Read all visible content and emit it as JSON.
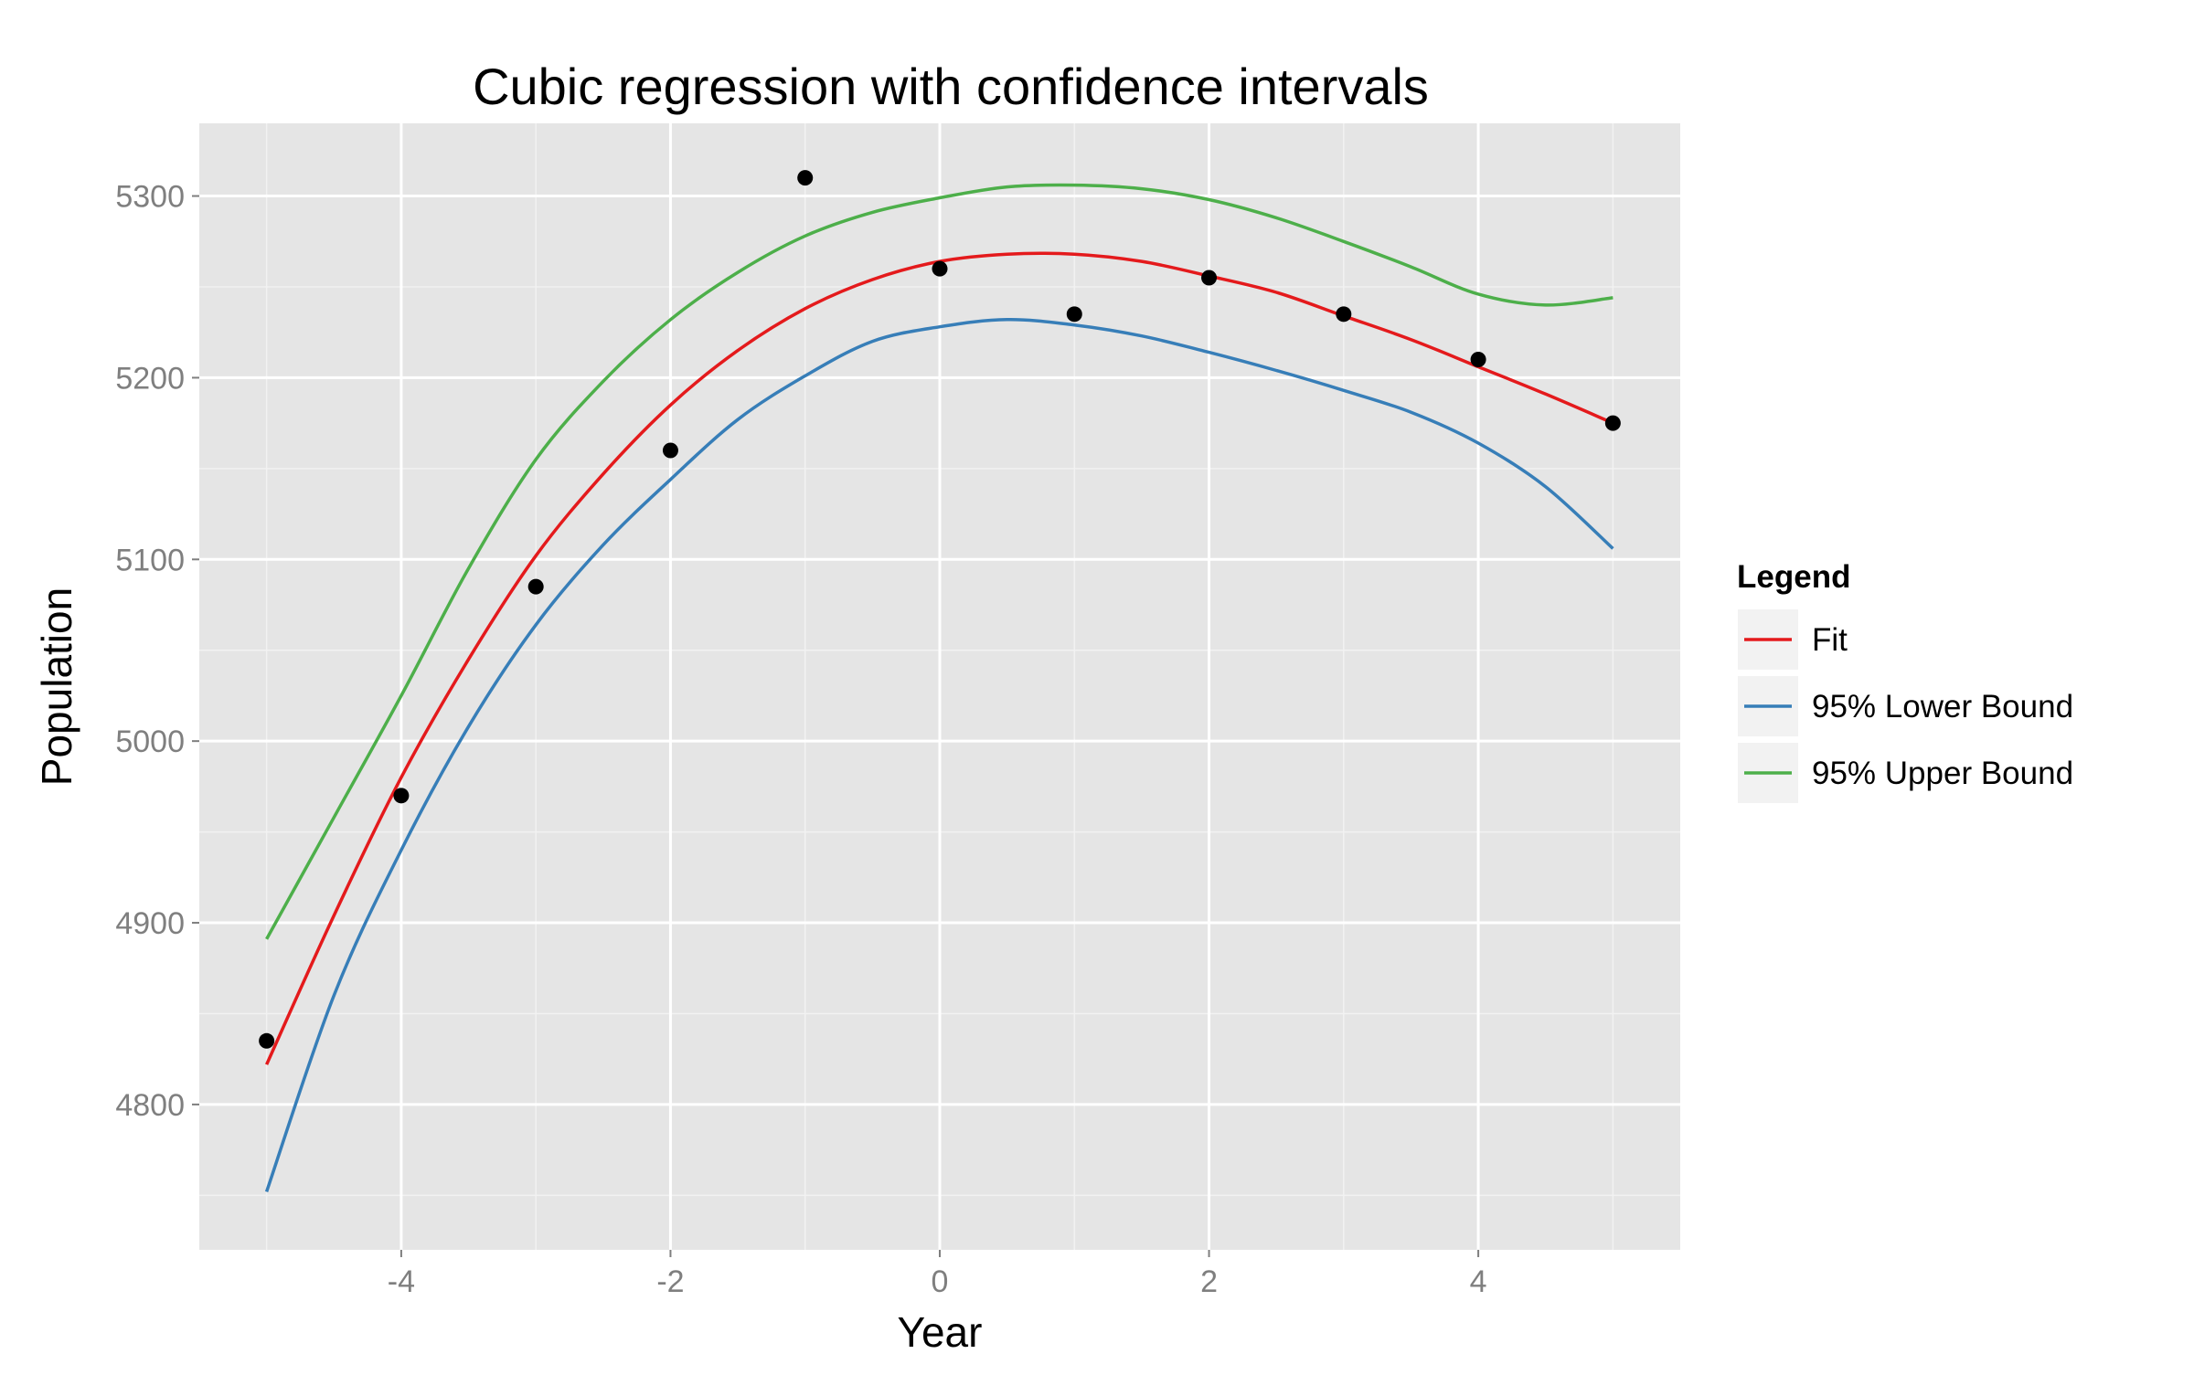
{
  "chart_data": {
    "type": "line",
    "title": "Cubic regression with confidence intervals",
    "xlabel": "Year",
    "ylabel": "Population",
    "xlim": [
      -5.5,
      5.5
    ],
    "ylim": [
      4720,
      5340
    ],
    "x_ticks": [
      -4,
      -2,
      0,
      2,
      4
    ],
    "y_ticks": [
      4800,
      4900,
      5000,
      5100,
      5200,
      5300
    ],
    "x_tick_labels": [
      "-4",
      "-2",
      "0",
      "2",
      "4"
    ],
    "y_tick_labels": [
      "4800",
      "4900",
      "5000",
      "5100",
      "5200",
      "5300"
    ],
    "grid": true,
    "legend": {
      "title": "Legend",
      "position": "right",
      "entries": [
        {
          "label": "Fit",
          "color": "#e41a1c"
        },
        {
          "label": "95% Lower Bound",
          "color": "#377eb8"
        },
        {
          "label": "95% Upper Bound",
          "color": "#4daf4a"
        }
      ]
    },
    "points": {
      "x": [
        -5,
        -4,
        -3,
        -2,
        -1,
        0,
        1,
        2,
        3,
        4,
        5
      ],
      "y": [
        4835,
        4970,
        5085,
        5160,
        5310,
        5260,
        5235,
        5255,
        5235,
        5210,
        5175
      ],
      "color": "#000000"
    },
    "series": [
      {
        "name": "Fit",
        "color": "#e41a1c",
        "x": [
          -5,
          -4.5,
          -4,
          -3.5,
          -3,
          -2.5,
          -2,
          -1.5,
          -1,
          -0.5,
          0,
          0.5,
          1,
          1.5,
          2,
          2.5,
          3,
          3.5,
          4,
          4.5,
          5
        ],
        "y": [
          4822,
          4904,
          4980,
          5045,
          5102,
          5147,
          5185,
          5215,
          5238,
          5254,
          5264,
          5268,
          5268,
          5264,
          5256,
          5247,
          5234,
          5221,
          5206,
          5191,
          5175
        ]
      },
      {
        "name": "95% Lower Bound",
        "color": "#377eb8",
        "x": [
          -5,
          -4.5,
          -4,
          -3.5,
          -3,
          -2.5,
          -2,
          -1.5,
          -1,
          -0.5,
          0,
          0.5,
          1,
          1.5,
          2,
          2.5,
          3,
          3.5,
          4,
          4.5,
          5
        ],
        "y": [
          4752,
          4860,
          4940,
          5008,
          5064,
          5108,
          5144,
          5177,
          5201,
          5220,
          5228,
          5232,
          5229,
          5223,
          5214,
          5204,
          5193,
          5181,
          5164,
          5140,
          5106
        ]
      },
      {
        "name": "95% Upper Bound",
        "color": "#4daf4a",
        "x": [
          -5,
          -4.5,
          -4,
          -3.5,
          -3,
          -2.5,
          -2,
          -1.5,
          -1,
          -0.5,
          0,
          0.5,
          1,
          1.5,
          2,
          2.5,
          3,
          3.5,
          4,
          4.5,
          5
        ],
        "y": [
          4891,
          4958,
          5025,
          5095,
          5155,
          5198,
          5232,
          5258,
          5278,
          5291,
          5299,
          5305,
          5306,
          5304,
          5298,
          5288,
          5275,
          5261,
          5246,
          5240,
          5244
        ]
      }
    ]
  }
}
